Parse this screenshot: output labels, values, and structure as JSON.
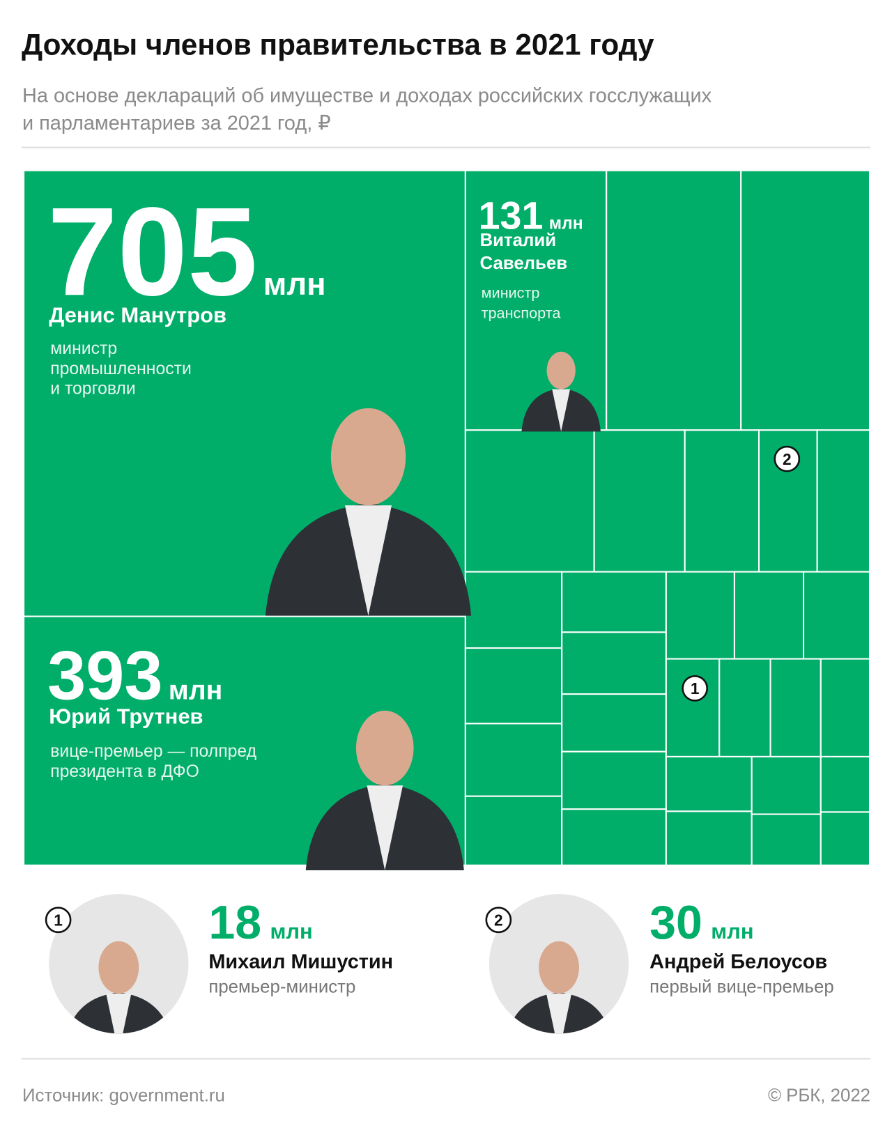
{
  "header": {
    "title": "Доходы членов правительства в 2021 году",
    "subtitle": [
      "На основе деклараций об имуществе и доходах российских госслужащих",
      "и парламентариев за 2021 год, ₽"
    ]
  },
  "featured": [
    {
      "amount": "705",
      "unit": "млн",
      "name": [
        "Денис Манутров"
      ],
      "role": [
        "министр",
        "промышленности",
        "и торговли"
      ]
    },
    {
      "amount": "393",
      "unit": "млн",
      "name": [
        "Юрий Трутнев"
      ],
      "role": [
        "вице-премьер — полпред",
        "президента в ДФО"
      ]
    },
    {
      "amount": "131",
      "unit": "млн",
      "name": [
        "Виталий",
        "Савельев"
      ],
      "role": [
        "министр",
        "транспорта"
      ]
    }
  ],
  "highlighted": [
    {
      "marker": "1",
      "amount": "18",
      "unit": "млн",
      "name": "Михаил Мишустин",
      "role": "премьер-министр"
    },
    {
      "marker": "2",
      "amount": "30",
      "unit": "млн",
      "name": "Андрей Белоусов",
      "role": "первый вице-премьер"
    }
  ],
  "footer": {
    "source": "Источник: government.ru",
    "copyright": "©  РБК, 2022"
  }
}
